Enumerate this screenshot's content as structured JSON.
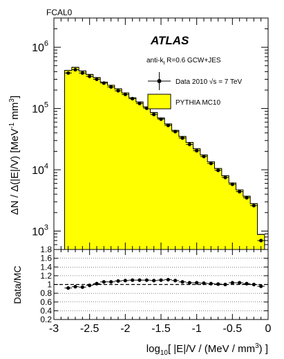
{
  "chart_data": {
    "type": "bar",
    "corner_label": "FCAL0",
    "experiment": "ATLAS",
    "jet_algorithm": {
      "base": "anti-k",
      "sub": "t",
      "rest": " R=0.6 GCW+JES"
    },
    "legend": {
      "data": "Data 2010 √s = 7 TeV",
      "mc": "PYTHIA MC10",
      "placement": "top-right"
    },
    "ylabel": {
      "pre": "ΔN / Δ(|E|/V)  [MeV",
      "sup1": "-1",
      "mid": " mm",
      "sup2": "3",
      "post": "]"
    },
    "xlabel": {
      "pre": "log",
      "sub": "10",
      "mid": "[ |E|/V / (MeV / mm",
      "sup": "3",
      "post": ") ]"
    },
    "ratio_ylabel": "Data/MC",
    "xlim": [
      -3,
      0
    ],
    "ylim": [
      500,
      3000000
    ],
    "yscale": "log",
    "ratio_ylim": [
      0.2,
      1.8
    ],
    "x_ticks": [
      -3,
      -2.5,
      -2,
      -1.5,
      -1,
      -0.5,
      0
    ],
    "x_tick_labels": [
      "-3",
      "-2.5",
      "-2",
      "-1.5",
      "-1",
      "-0.5",
      "0"
    ],
    "y_ticks": [
      1000,
      10000,
      100000,
      1000000
    ],
    "y_tick_labels": [
      {
        "base": "10",
        "exp": "3"
      },
      {
        "base": "10",
        "exp": "4"
      },
      {
        "base": "10",
        "exp": "5"
      },
      {
        "base": "10",
        "exp": "6"
      }
    ],
    "ratio_ticks": [
      0.2,
      0.4,
      0.6,
      0.8,
      1,
      1.2,
      1.4,
      1.6,
      1.8
    ],
    "ratio_tick_labels": [
      "0.2",
      "0.4",
      "0.6",
      "0.8",
      "1",
      "1.2",
      "1.4",
      "1.6",
      "1.8"
    ],
    "colors": {
      "mc_fill": "#ffff00",
      "data": "#000000"
    },
    "bin_edges": [
      -2.85,
      -2.75,
      -2.65,
      -2.55,
      -2.45,
      -2.35,
      -2.25,
      -2.15,
      -2.05,
      -1.95,
      -1.85,
      -1.75,
      -1.65,
      -1.55,
      -1.45,
      -1.35,
      -1.25,
      -1.15,
      -1.05,
      -0.95,
      -0.85,
      -0.75,
      -0.65,
      -0.55,
      -0.45,
      -0.35,
      -0.25,
      -0.15,
      -0.05
    ],
    "mc_values": [
      420000,
      470000,
      410000,
      360000,
      320000,
      270000,
      240000,
      210000,
      180000,
      150000,
      128000,
      106000,
      86000,
      70000,
      56000,
      44000,
      35000,
      28000,
      22000,
      17500,
      13500,
      10500,
      8000,
      6100,
      4700,
      3700,
      2800,
      880
    ],
    "data_x": [
      -2.8,
      -2.7,
      -2.6,
      -2.5,
      -2.4,
      -2.3,
      -2.2,
      -2.1,
      -2.0,
      -1.9,
      -1.8,
      -1.7,
      -1.6,
      -1.5,
      -1.4,
      -1.3,
      -1.2,
      -1.1,
      -1.0,
      -0.9,
      -0.8,
      -0.7,
      -0.6,
      -0.5,
      -0.4,
      -0.3,
      -0.2,
      -0.1
    ],
    "data_values": [
      380000,
      430000,
      380000,
      335000,
      300000,
      260000,
      225000,
      195000,
      170000,
      145000,
      121000,
      101000,
      80000,
      67000,
      53000,
      42000,
      33000,
      26000,
      20500,
      16500,
      12700,
      9800,
      7500,
      5800,
      4400,
      3500,
      2600,
      700
    ],
    "ratio_values": [
      0.92,
      0.95,
      0.94,
      0.98,
      1.02,
      1.06,
      1.06,
      1.08,
      1.09,
      1.1,
      1.1,
      1.1,
      1.09,
      1.1,
      1.11,
      1.09,
      1.06,
      1.04,
      1.04,
      1.03,
      1.02,
      1.01,
      1.0,
      1.04,
      1.04,
      1.02,
      1.0,
      0.96
    ]
  }
}
